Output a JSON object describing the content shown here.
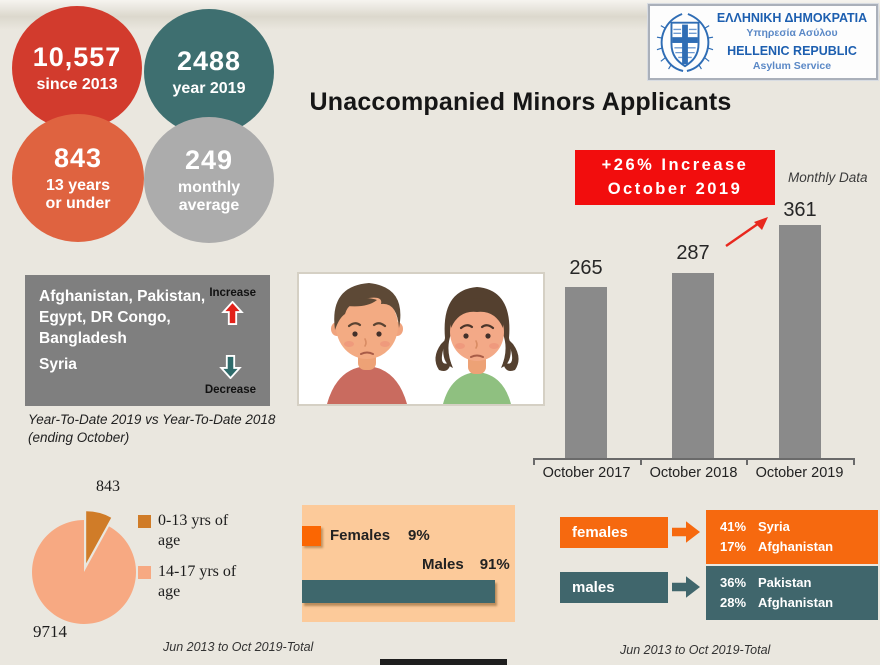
{
  "header": {
    "title": "Unaccompanied Minors Applicants",
    "logo": {
      "greek_name": "ΕΛΛΗΝΙΚΗ ΔΗΜΟΚΡΑΤΙΑ",
      "greek_service": "Υπηρεσία Ασύλου",
      "latin_name": "HELLENIC REPUBLIC",
      "latin_service": "Asylum Service"
    }
  },
  "stat_circles": [
    {
      "value": "10,557",
      "label": "since 2013",
      "color": "#d23b2d"
    },
    {
      "value": "2488",
      "label": "year 2019",
      "color": "#3e6f70"
    },
    {
      "value": "843",
      "label": "13 years or under",
      "color": "#df6340"
    },
    {
      "value": "249",
      "label": "monthly average",
      "color": "#acacac"
    }
  ],
  "highlight_box": {
    "line1": "+26% Increase",
    "line2": "October 2019"
  },
  "monthly_label": "Monthly Data",
  "chart_data": [
    {
      "type": "bar",
      "title": "Monthly Data",
      "categories": [
        "October 2017",
        "October 2018",
        "October 2019"
      ],
      "values": [
        265,
        287,
        361
      ],
      "annotation": "+26% Increase October 2019",
      "bar_color": "#8a8a8a",
      "ylim": [
        0,
        400
      ],
      "grid": false
    },
    {
      "type": "pie",
      "labels": [
        "0-13 yrs of age",
        "14-17 yrs of age"
      ],
      "values": [
        843,
        9714
      ],
      "colors": [
        "#d07c28",
        "#f7a982"
      ],
      "title": "Jun 2013 to Oct 2019-Total",
      "legend_position": "right"
    },
    {
      "type": "bar",
      "categories": [
        "Females",
        "Males"
      ],
      "values": [
        9,
        91
      ],
      "unit": "%",
      "colors": [
        "#fb6602",
        "#3e676c"
      ],
      "title": "Jun 2013 to Oct 2019-Total"
    }
  ],
  "trend_box": {
    "increase_countries": "Afghanistan, Pakistan, Egypt, DR Congo, Bangladesh",
    "increase_label": "Increase",
    "decrease_countries": "Syria",
    "decrease_label": "Decrease",
    "note_line1": "Year-To-Date 2019 vs Year-To-Date 2018",
    "note_line2": "(ending October)"
  },
  "age_section": {
    "slice_value": "843",
    "main_value": "9714",
    "legend": [
      {
        "label": "0-13 yrs of age",
        "color": "#d07c28"
      },
      {
        "label": "14-17 yrs of age",
        "color": "#f7a982"
      }
    ],
    "footer": "Jun 2013 to Oct 2019-Total"
  },
  "gender_section": {
    "females_label": "Females",
    "females_value": "9%",
    "males_label": "Males",
    "males_value": "91%"
  },
  "origin_section": {
    "females": {
      "box_label": "females",
      "rows": [
        [
          "41%",
          "Syria"
        ],
        [
          "17%",
          "Afghanistan"
        ]
      ]
    },
    "males": {
      "box_label": "males",
      "rows": [
        [
          "36%",
          "Pakistan"
        ],
        [
          "28%",
          "Afghanistan"
        ]
      ]
    },
    "footer": "Jun 2013 to Oct 2019-Total"
  },
  "colors": {
    "background": "#eae7df",
    "accent_red": "#f20d0d",
    "circle_red": "#d23b2d",
    "circle_teal": "#3e6f70",
    "circle_orange": "#df6340",
    "circle_gray": "#acacac",
    "bar_gray": "#8a8a8a",
    "box_gray": "#7f7f7f",
    "orange": "#f6690f",
    "teal": "#40666c",
    "peach_panel": "#fcca9a",
    "pie_dark": "#d07c28",
    "pie_light": "#f7a982",
    "logo_blue": "#1d5fb0"
  }
}
